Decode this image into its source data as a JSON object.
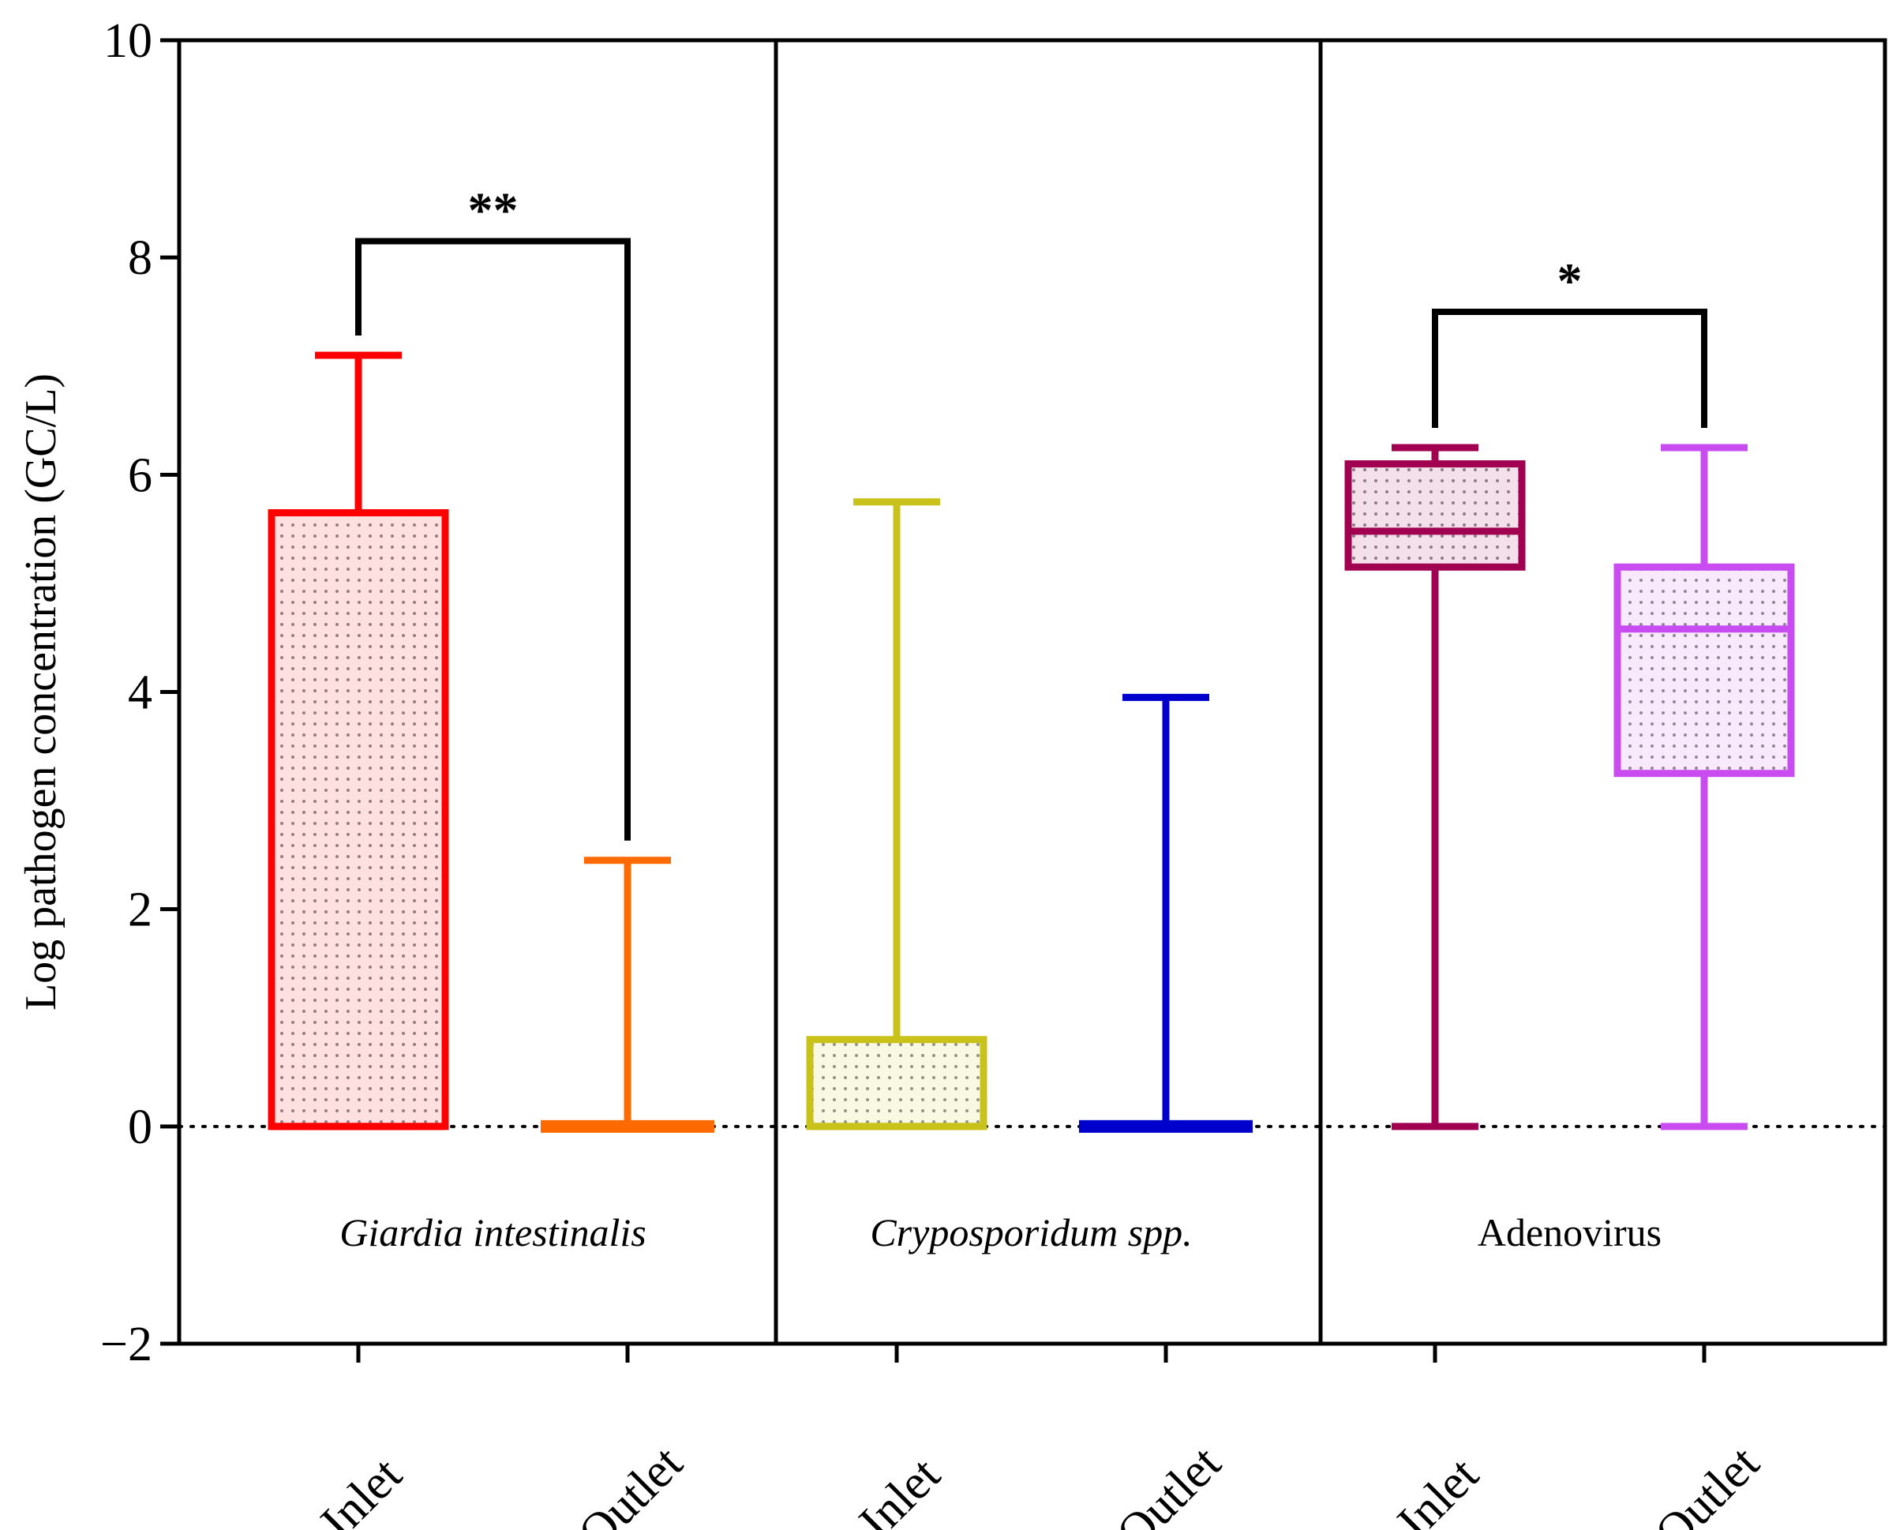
{
  "chart_data": {
    "type": "box",
    "title": "",
    "xlabel": "",
    "ylabel": "Log pathogen concentration (GC/L)",
    "ylim": [
      -2,
      10
    ],
    "yticks": [
      "−2",
      "0",
      "2",
      "4",
      "6",
      "8",
      "10"
    ],
    "ytick_values": [
      -2,
      0,
      2,
      4,
      6,
      8,
      10
    ],
    "reference_line": {
      "y": 0,
      "style": "dotted"
    },
    "panels": [
      {
        "label": "Giardia intestinalis",
        "italic": true,
        "groups": [
          {
            "category": "Inlet",
            "color": "#ff0000",
            "min": 0,
            "q1": 0,
            "median": 0,
            "q3": 5.65,
            "max": 7.1
          },
          {
            "category": "Outlet",
            "color": "#ff6a00",
            "min": 0,
            "q1": 0,
            "median": 0,
            "q3": 0,
            "max": 2.45
          }
        ],
        "significance": {
          "marker": "**",
          "level": 8.15
        }
      },
      {
        "label": "Cryposporidum spp.",
        "italic": true,
        "groups": [
          {
            "category": "Inlet",
            "color": "#c8c21a",
            "min": 0,
            "q1": 0,
            "median": 0,
            "q3": 0.8,
            "max": 5.75
          },
          {
            "category": "Outlet",
            "color": "#0000cc",
            "min": 0,
            "q1": 0,
            "median": 0,
            "q3": 0,
            "max": 3.95
          }
        ],
        "significance": null
      },
      {
        "label": "Adenovirus",
        "italic": false,
        "groups": [
          {
            "category": "Inlet",
            "color": "#a0004f",
            "min": 0,
            "q1": 5.15,
            "median": 5.48,
            "q3": 6.1,
            "max": 6.25
          },
          {
            "category": "Outlet",
            "color": "#c84cf0",
            "min": 0,
            "q1": 3.25,
            "median": 4.58,
            "q3": 5.15,
            "max": 6.25
          }
        ],
        "significance": {
          "marker": "*",
          "level": 7.5
        }
      }
    ]
  }
}
